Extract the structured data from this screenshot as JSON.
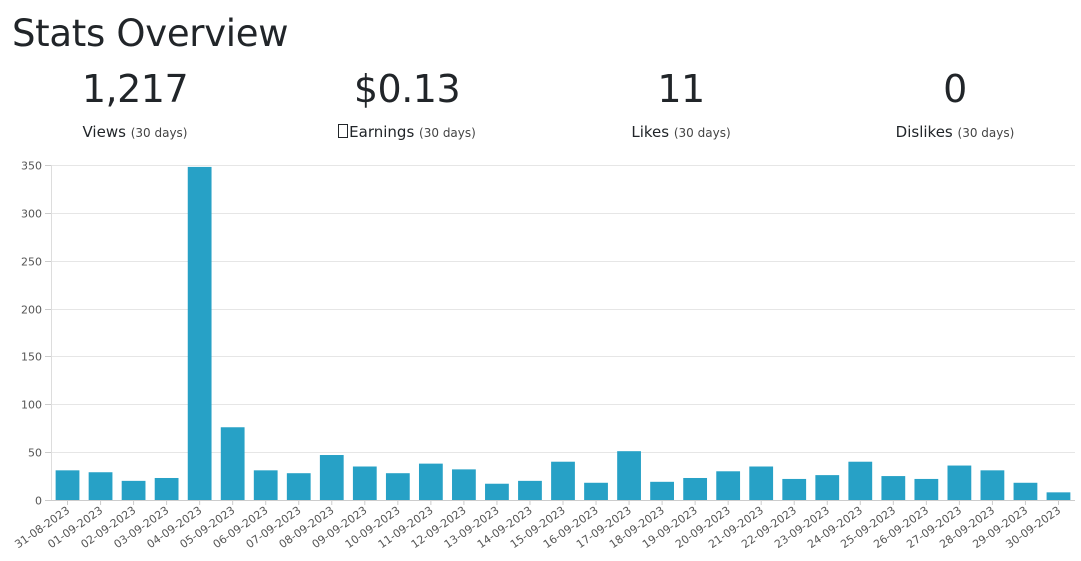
{
  "page": {
    "title": "Stats Overview"
  },
  "stats": [
    {
      "value": "1,217",
      "label": "Views",
      "period": "(30 days)"
    },
    {
      "value": "$0.13",
      "label": "Earnings",
      "period": "(30 days)"
    },
    {
      "value": "11",
      "label": "Likes",
      "period": "(30 days)"
    },
    {
      "value": "0",
      "label": "Dislikes",
      "period": "(30 days)"
    }
  ],
  "colors": {
    "bar": "#27a1c6",
    "grid": "#e6e6e6"
  },
  "chart_data": {
    "type": "bar",
    "categories": [
      "31-08-2023",
      "01-09-2023",
      "02-09-2023",
      "03-09-2023",
      "04-09-2023",
      "05-09-2023",
      "06-09-2023",
      "07-09-2023",
      "08-09-2023",
      "09-09-2023",
      "10-09-2023",
      "11-09-2023",
      "12-09-2023",
      "13-09-2023",
      "14-09-2023",
      "15-09-2023",
      "16-09-2023",
      "17-09-2023",
      "18-09-2023",
      "19-09-2023",
      "20-09-2023",
      "21-09-2023",
      "22-09-2023",
      "23-09-2023",
      "24-09-2023",
      "25-09-2023",
      "26-09-2023",
      "27-09-2023",
      "28-09-2023",
      "29-09-2023",
      "30-09-2023"
    ],
    "values": [
      31,
      29,
      20,
      23,
      348,
      76,
      31,
      28,
      47,
      35,
      28,
      38,
      32,
      17,
      20,
      40,
      18,
      51,
      19,
      23,
      30,
      35,
      22,
      26,
      40,
      25,
      22,
      36,
      31,
      18,
      8
    ],
    "yticks": [
      0,
      50,
      100,
      150,
      200,
      250,
      300,
      350
    ],
    "ylim": [
      0,
      350
    ],
    "grid": true,
    "legend": "none"
  }
}
